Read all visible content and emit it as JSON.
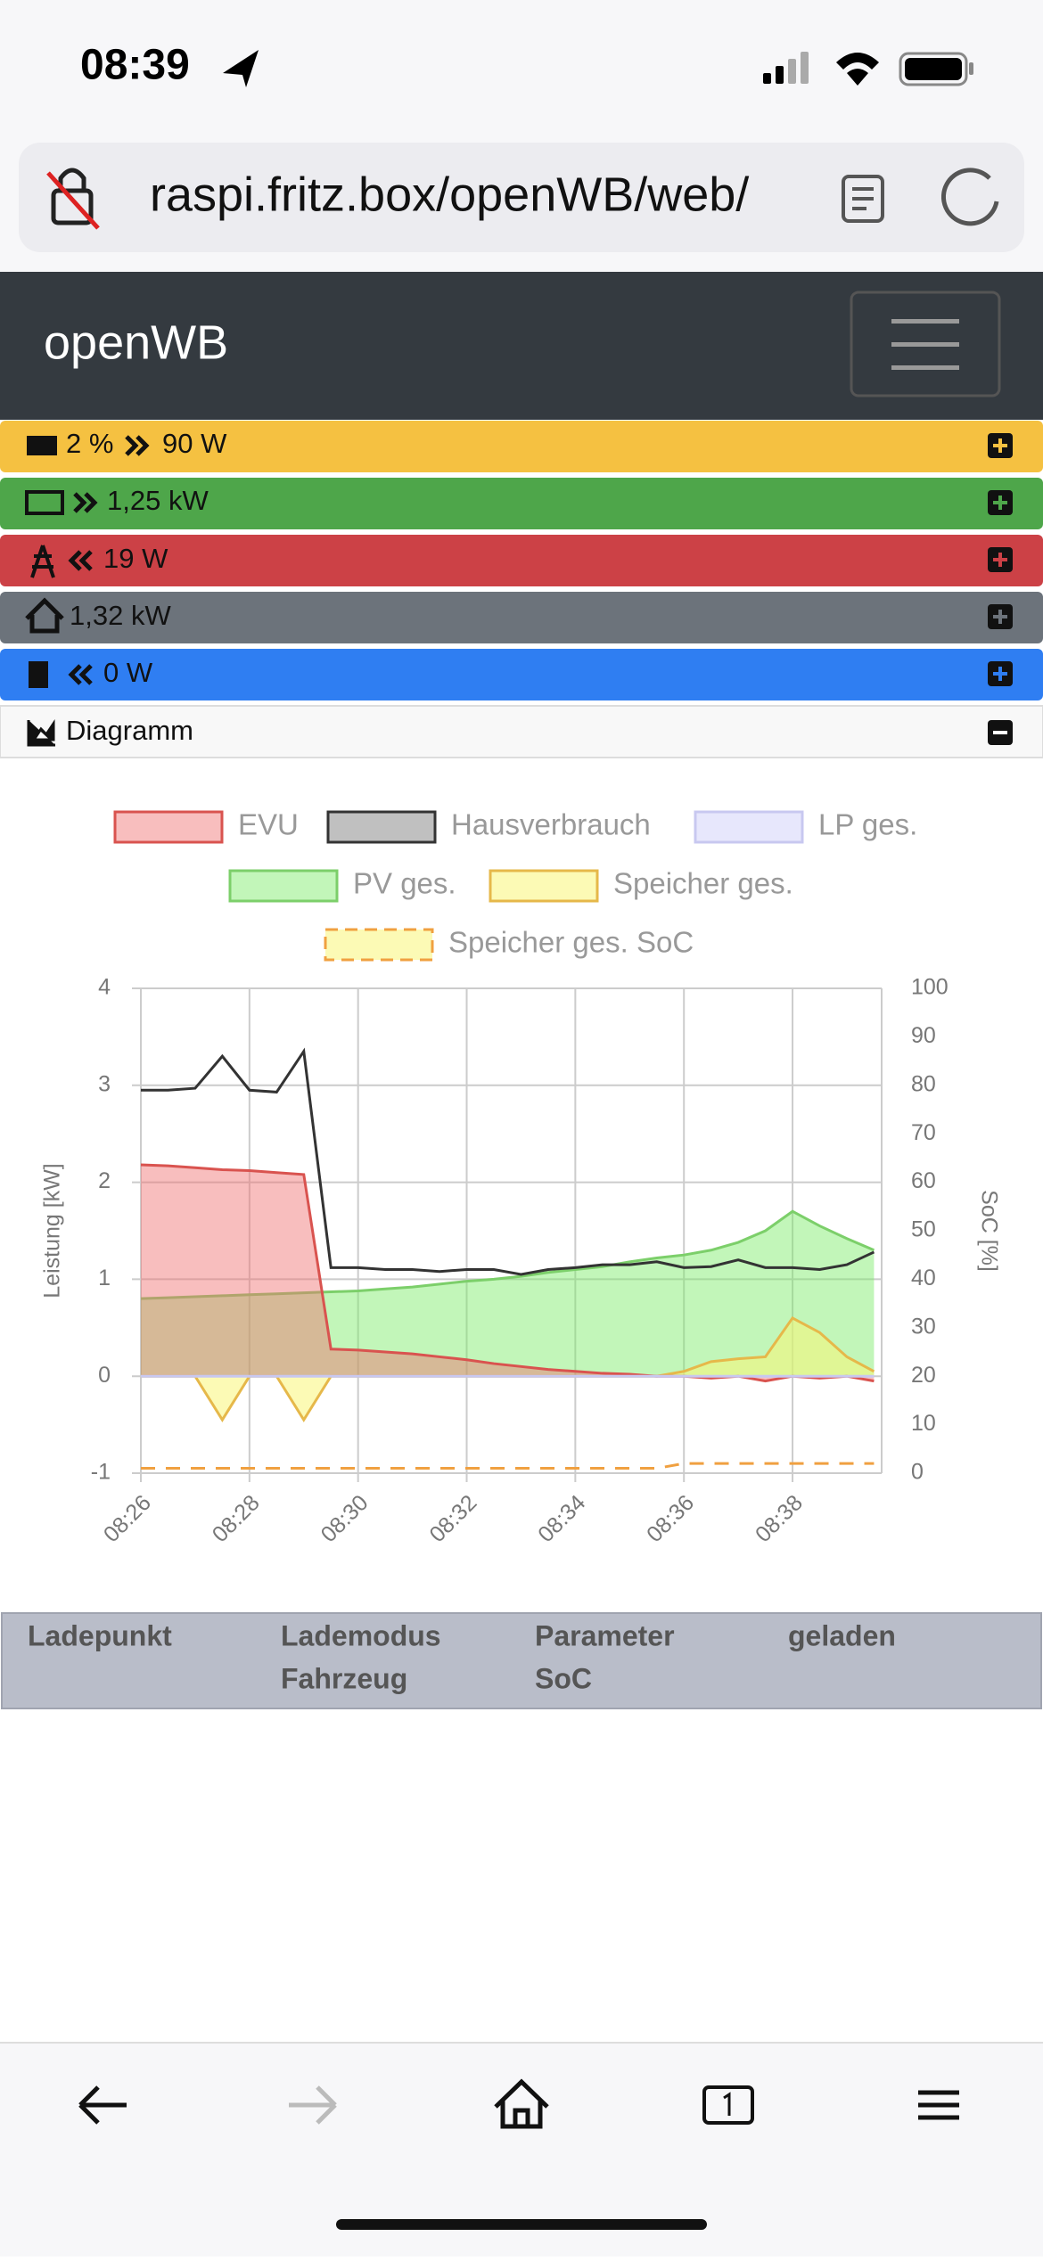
{
  "status_bar": {
    "time": "08:39"
  },
  "address_bar": {
    "url": "raspi.fritz.box/openWB/web/"
  },
  "navbar": {
    "brand": "openWB"
  },
  "rows": [
    [
      "2 %",
      "90 W"
    ],
    [
      "1,25 kW"
    ],
    [
      "19 W"
    ],
    [
      "1,32 kW"
    ],
    [
      "0 W"
    ],
    [
      "Diagramm"
    ]
  ],
  "chart_data": {
    "type": "area",
    "ylabel": "Leistung [kW]",
    "y2label": "SoC [%]",
    "categories": [
      "08:26",
      null,
      null,
      null,
      "08:28",
      null,
      null,
      null,
      "08:30",
      null,
      null,
      null,
      "08:32",
      null,
      null,
      null,
      "08:34",
      null,
      null,
      null,
      "08:36",
      null,
      null,
      null,
      "08:38",
      null,
      null,
      null
    ],
    "series": [
      {
        "name": "EVU",
        "color": "#d9534f",
        "fill": "rgba(240,110,110,0.45)",
        "values": [
          2.18,
          2.17,
          2.15,
          2.13,
          2.12,
          2.1,
          2.08,
          0.28,
          0.27,
          0.25,
          0.23,
          0.2,
          0.17,
          0.13,
          0.1,
          0.07,
          0.05,
          0.03,
          0.02,
          0.0,
          0.0,
          -0.02,
          0.0,
          -0.05,
          0.0,
          -0.02,
          0.0,
          -0.05
        ]
      },
      {
        "name": "Hausverbrauch",
        "color": "#333333",
        "fill": "rgba(150,150,150,0.6)",
        "line_only": true,
        "values": [
          2.95,
          2.95,
          2.97,
          3.3,
          2.95,
          2.93,
          3.35,
          1.12,
          1.12,
          1.1,
          1.1,
          1.08,
          1.1,
          1.1,
          1.05,
          1.1,
          1.12,
          1.15,
          1.15,
          1.18,
          1.12,
          1.13,
          1.2,
          1.12,
          1.12,
          1.1,
          1.15,
          1.28
        ]
      },
      {
        "name": "LP ges.",
        "color": "#c8c8f0",
        "fill": "rgba(215,215,250,0.6)",
        "values": [
          0,
          0,
          0,
          0,
          0,
          0,
          0,
          0,
          0,
          0,
          0,
          0,
          0,
          0,
          0,
          0,
          0,
          0,
          0,
          0,
          0,
          0,
          0,
          0,
          0,
          0,
          0,
          0
        ]
      },
      {
        "name": "PV ges.",
        "color": "#7ccf6a",
        "fill": "rgba(120,235,100,0.45)",
        "values": [
          0.8,
          0.81,
          0.82,
          0.83,
          0.84,
          0.85,
          0.86,
          0.87,
          0.88,
          0.9,
          0.92,
          0.95,
          0.98,
          1.0,
          1.03,
          1.07,
          1.1,
          1.13,
          1.18,
          1.22,
          1.25,
          1.3,
          1.38,
          1.5,
          1.7,
          1.55,
          1.42,
          1.3
        ]
      },
      {
        "name": "Speicher ges.",
        "color": "#e6b84a",
        "fill": "rgba(250,245,120,0.55)",
        "values": [
          0,
          0,
          0,
          -0.45,
          0,
          0,
          -0.45,
          0,
          0,
          0,
          0,
          0,
          0,
          0,
          0,
          0,
          0,
          0,
          0,
          0,
          0.05,
          0.15,
          0.18,
          0.2,
          0.6,
          0.45,
          0.2,
          0.05
        ]
      },
      {
        "name": "Speicher ges. SoC",
        "color": "#f0a040",
        "fill": "rgba(250,245,120,0.55)",
        "dashed": true,
        "axis": "y2",
        "values": [
          1,
          1,
          1,
          1,
          1,
          1,
          1,
          1,
          1,
          1,
          1,
          1,
          1,
          1,
          1,
          1,
          1,
          1,
          1,
          1,
          2,
          2,
          2,
          2,
          2,
          2,
          2,
          2
        ]
      }
    ],
    "ylim": [
      -1,
      4
    ],
    "yticks": [
      -1,
      0,
      1,
      2,
      3,
      4
    ],
    "y2lim": [
      0,
      100
    ],
    "y2ticks": [
      0,
      10,
      20,
      30,
      40,
      50,
      60,
      70,
      80,
      90,
      100
    ],
    "grid": true
  },
  "table": {
    "header": [
      [
        "Ladepunkt"
      ],
      [
        "Lademodus",
        "Fahrzeug"
      ],
      [
        "Parameter",
        "SoC"
      ],
      [
        "geladen"
      ]
    ]
  }
}
